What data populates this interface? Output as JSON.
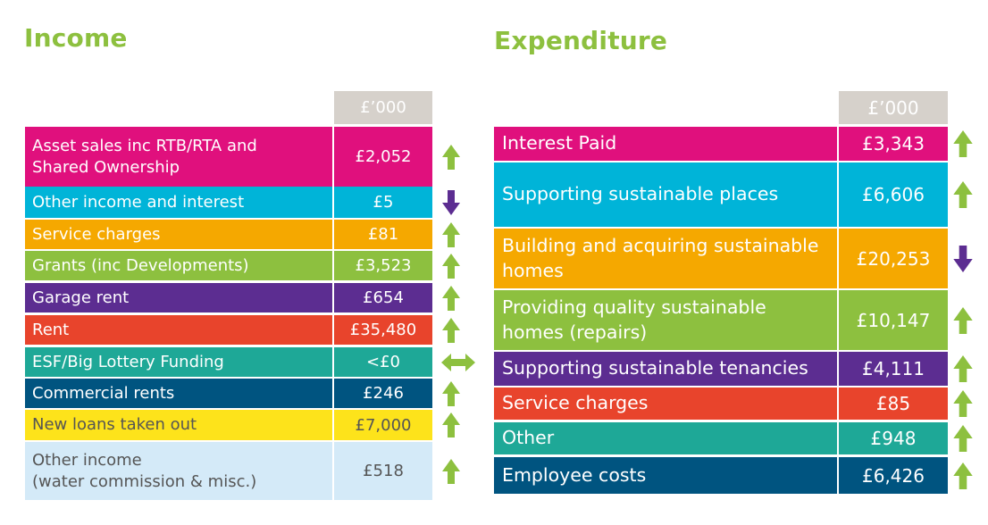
{
  "income": {
    "title": "Income",
    "unit_header": "£’000",
    "rows": [
      {
        "label": "Asset sales inc RTB/RTA and\nShared Ownership",
        "value": "£2,052",
        "bg": "#e0107d",
        "fg": "#ffffff",
        "trend": "up"
      },
      {
        "label": "Other income and interest",
        "value": "£5",
        "bg": "#00b4d8",
        "fg": "#ffffff",
        "trend": "down"
      },
      {
        "label": "Service charges",
        "value": "£81",
        "bg": "#f5a800",
        "fg": "#ffffff",
        "trend": "up"
      },
      {
        "label": "Grants (inc Developments)",
        "value": "£3,523",
        "bg": "#8dc03f",
        "fg": "#ffffff",
        "trend": "up"
      },
      {
        "label": "Garage rent",
        "value": "£654",
        "bg": "#5c2d91",
        "fg": "#ffffff",
        "trend": "up"
      },
      {
        "label": "Rent",
        "value": "£35,480",
        "bg": "#e8442c",
        "fg": "#ffffff",
        "trend": "up"
      },
      {
        "label": "ESF/Big Lottery Funding",
        "value": "<£0",
        "bg": "#1ea897",
        "fg": "#ffffff",
        "trend": "flat"
      },
      {
        "label": "Commercial rents",
        "value": "£246",
        "bg": "#005480",
        "fg": "#ffffff",
        "trend": "up"
      },
      {
        "label": "New loans taken out",
        "value": "£7,000",
        "bg": "#fde31b",
        "fg": "#555555",
        "trend": "up"
      },
      {
        "label": "Other income\n(water commission & misc.)",
        "value": "£518",
        "bg": "#d4eaf8",
        "fg": "#555555",
        "trend": "up"
      }
    ]
  },
  "expenditure": {
    "title": "Expenditure",
    "unit_header": "£’000",
    "rows": [
      {
        "label": "Interest Paid",
        "value": "£3,343",
        "bg": "#e0107d",
        "fg": "#ffffff",
        "trend": "up"
      },
      {
        "label": "Supporting sustainable places",
        "value": "£6,606",
        "bg": "#00b4d8",
        "fg": "#ffffff",
        "trend": "up"
      },
      {
        "label": "Building and acquiring sustainable\nhomes",
        "value": "£20,253",
        "bg": "#f5a800",
        "fg": "#ffffff",
        "trend": "down"
      },
      {
        "label": "Providing quality sustainable\nhomes (repairs)",
        "value": "£10,147",
        "bg": "#8dc03f",
        "fg": "#ffffff",
        "trend": "up"
      },
      {
        "label": "Supporting sustainable tenancies",
        "value": "£4,111",
        "bg": "#5c2d91",
        "fg": "#ffffff",
        "trend": "up"
      },
      {
        "label": "Service charges",
        "value": "£85",
        "bg": "#e8442c",
        "fg": "#ffffff",
        "trend": "up"
      },
      {
        "label": "Other",
        "value": "£948",
        "bg": "#1ea897",
        "fg": "#ffffff",
        "trend": "up"
      },
      {
        "label": "Employee costs",
        "value": "£6,426",
        "bg": "#005480",
        "fg": "#ffffff",
        "trend": "up"
      }
    ]
  },
  "arrow_colors": {
    "up": "#8dc03f",
    "down": "#5c2d91",
    "flat": "#8dc03f"
  },
  "arrow_icons": {
    "up": "arrow-up-icon",
    "down": "arrow-down-icon",
    "flat": "arrow-left-right-icon"
  }
}
